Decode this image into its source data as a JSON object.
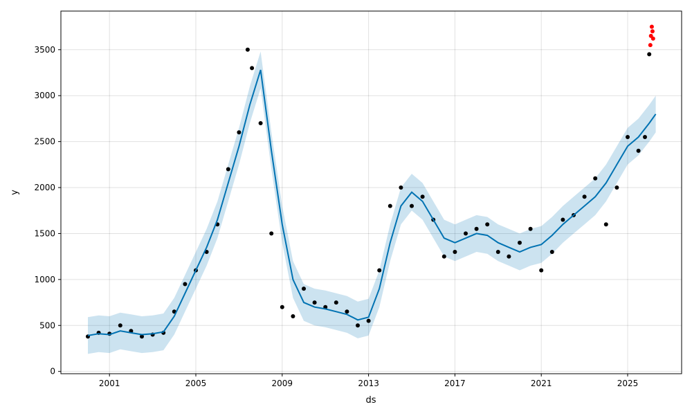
{
  "chart_data": {
    "type": "scatter",
    "xlabel": "ds",
    "ylabel": "y",
    "xlim": [
      1998.75,
      2027.5
    ],
    "ylim": [
      -25,
      3920
    ],
    "grid": true,
    "x_ticks": [
      2001,
      2005,
      2009,
      2013,
      2017,
      2021,
      2025
    ],
    "x_tick_labels": [
      "2001",
      "2005",
      "2009",
      "2013",
      "2017",
      "2021",
      "2025"
    ],
    "y_ticks": [
      0,
      500,
      1000,
      1500,
      2000,
      2500,
      3000,
      3500
    ],
    "y_tick_labels": [
      "0",
      "500",
      "1000",
      "1500",
      "2000",
      "2500",
      "3000",
      "3500"
    ],
    "colors": {
      "observed": "#000000",
      "holdout": "#ff0000",
      "forecast": "#0072b2",
      "interval": "#0072b2"
    },
    "forecast": {
      "x": [
        2000.0,
        2000.5,
        2001.0,
        2001.5,
        2002.0,
        2002.5,
        2003.0,
        2003.5,
        2004.0,
        2004.5,
        2005.0,
        2005.5,
        2006.0,
        2006.5,
        2007.0,
        2007.5,
        2008.0,
        2008.5,
        2009.0,
        2009.5,
        2010.0,
        2010.5,
        2011.0,
        2011.5,
        2012.0,
        2012.5,
        2013.0,
        2013.5,
        2014.0,
        2014.5,
        2015.0,
        2015.5,
        2016.0,
        2016.5,
        2017.0,
        2017.5,
        2018.0,
        2018.5,
        2019.0,
        2019.5,
        2020.0,
        2020.5,
        2021.0,
        2021.5,
        2022.0,
        2022.5,
        2023.0,
        2023.5,
        2024.0,
        2024.5,
        2025.0,
        2025.5,
        2026.0,
        2026.3
      ],
      "yhat": [
        390,
        410,
        400,
        440,
        420,
        400,
        410,
        430,
        600,
        850,
        1100,
        1350,
        1650,
        2050,
        2450,
        2900,
        3280,
        2400,
        1600,
        1000,
        750,
        700,
        680,
        650,
        620,
        560,
        590,
        900,
        1400,
        1800,
        1950,
        1850,
        1650,
        1450,
        1400,
        1450,
        1500,
        1480,
        1400,
        1350,
        1300,
        1350,
        1380,
        1480,
        1600,
        1700,
        1800,
        1900,
        2050,
        2250,
        2450,
        2550,
        2700,
        2800
      ],
      "upper": [
        590,
        610,
        600,
        640,
        620,
        600,
        610,
        630,
        800,
        1050,
        1300,
        1550,
        1850,
        2250,
        2650,
        3100,
        3480,
        2600,
        1800,
        1200,
        950,
        900,
        880,
        850,
        820,
        760,
        790,
        1100,
        1600,
        2000,
        2150,
        2050,
        1850,
        1650,
        1600,
        1650,
        1700,
        1680,
        1600,
        1550,
        1500,
        1550,
        1580,
        1680,
        1800,
        1900,
        2000,
        2100,
        2250,
        2450,
        2650,
        2750,
        2900,
        3000
      ],
      "lower": [
        190,
        210,
        200,
        240,
        220,
        200,
        210,
        230,
        400,
        650,
        900,
        1150,
        1450,
        1850,
        2250,
        2700,
        3080,
        2200,
        1400,
        800,
        550,
        500,
        480,
        450,
        420,
        360,
        390,
        700,
        1200,
        1600,
        1750,
        1650,
        1450,
        1250,
        1200,
        1250,
        1300,
        1280,
        1200,
        1150,
        1100,
        1150,
        1180,
        1280,
        1400,
        1500,
        1600,
        1700,
        1850,
        2050,
        2250,
        2350,
        2500,
        2600
      ]
    },
    "observed": {
      "x": [
        2000.0,
        2000.5,
        2001.0,
        2001.5,
        2002.0,
        2002.5,
        2003.0,
        2003.5,
        2004.0,
        2004.5,
        2005.0,
        2005.5,
        2006.0,
        2006.5,
        2007.0,
        2007.4,
        2007.6,
        2008.0,
        2008.5,
        2009.0,
        2009.5,
        2010.0,
        2010.5,
        2011.0,
        2011.5,
        2012.0,
        2012.5,
        2013.0,
        2013.5,
        2014.0,
        2014.5,
        2015.0,
        2015.5,
        2016.0,
        2016.5,
        2017.0,
        2017.5,
        2018.0,
        2018.5,
        2019.0,
        2019.5,
        2020.0,
        2020.5,
        2021.0,
        2021.5,
        2022.0,
        2022.5,
        2023.0,
        2023.5,
        2024.0,
        2024.5,
        2025.0,
        2025.5,
        2025.8,
        2026.0
      ],
      "y": [
        380,
        420,
        410,
        500,
        440,
        380,
        400,
        420,
        650,
        950,
        1100,
        1300,
        1600,
        2200,
        2600,
        3500,
        3300,
        2700,
        1500,
        700,
        600,
        900,
        750,
        700,
        750,
        650,
        500,
        550,
        1100,
        1800,
        2000,
        1800,
        1900,
        1650,
        1250,
        1300,
        1500,
        1550,
        1600,
        1300,
        1250,
        1400,
        1550,
        1100,
        1300,
        1650,
        1700,
        1900,
        2100,
        1600,
        2000,
        2550,
        2400,
        2550,
        3450
      ]
    },
    "holdout": {
      "x": [
        2026.05,
        2026.08,
        2026.12,
        2026.15,
        2026.18
      ],
      "y": [
        3550,
        3650,
        3750,
        3700,
        3620
      ]
    }
  }
}
